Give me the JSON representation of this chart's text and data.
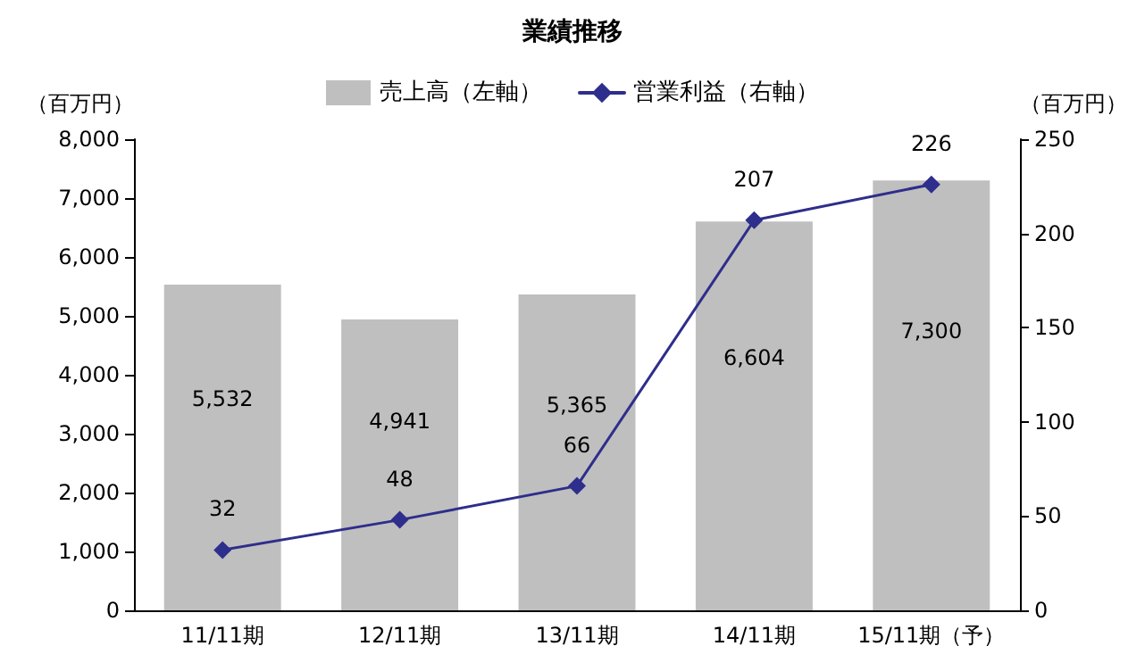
{
  "chart_data": {
    "type": "bar",
    "title": "業績推移",
    "ylabel": "（百万円）",
    "y2label": "（百万円）",
    "categories": [
      "11/11期",
      "12/11期",
      "13/11期",
      "14/11期",
      "15/11期（予）"
    ],
    "series": [
      {
        "name": "売上高（左軸）",
        "color": "#bfbfbf",
        "values": [
          5532,
          4941,
          5365,
          6604,
          7300
        ],
        "value_labels": [
          "5,532",
          "4,941",
          "5,365",
          "6,604",
          "7,300"
        ]
      },
      {
        "name": "営業利益（右軸）",
        "type": "line",
        "axis": "y2",
        "color": "#2e2e8c",
        "marker": "diamond",
        "values": [
          32,
          48,
          66,
          207,
          226
        ],
        "value_labels": [
          "32",
          "48",
          "66",
          "207",
          "226"
        ]
      }
    ],
    "ylim": [
      0,
      8000
    ],
    "yticks": [
      {
        "value": 0,
        "label": "0"
      },
      {
        "value": 1000,
        "label": "1,000"
      },
      {
        "value": 2000,
        "label": "2,000"
      },
      {
        "value": 3000,
        "label": "3,000"
      },
      {
        "value": 4000,
        "label": "4,000"
      },
      {
        "value": 5000,
        "label": "5,000"
      },
      {
        "value": 6000,
        "label": "6,000"
      },
      {
        "value": 7000,
        "label": "7,000"
      },
      {
        "value": 8000,
        "label": "8,000"
      }
    ],
    "y2lim": [
      0,
      250
    ],
    "y2ticks": [
      0,
      50,
      100,
      150,
      200,
      250
    ],
    "grid": false,
    "legend": "top"
  }
}
